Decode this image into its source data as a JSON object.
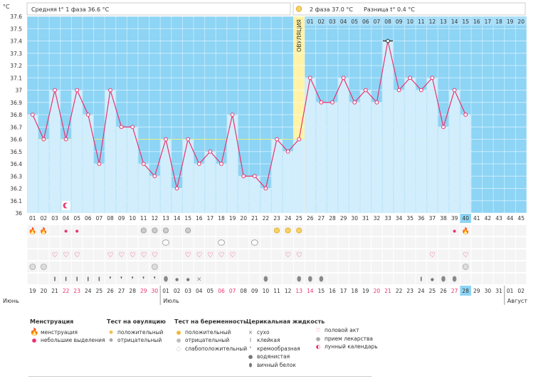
{
  "header": {
    "phase1": "Средняя t° 1 фаза 36.6 °C",
    "phase2": "2 фаза 37.0 °C",
    "diff": "Разница t° 0.4 °C",
    "phase2_icon": "sun-icon"
  },
  "chart_data": {
    "type": "line",
    "yunit": "°C",
    "ylim": [
      36,
      37.6
    ],
    "yticks": [
      "36",
      "36.1",
      "36.2",
      "36.3",
      "36.4",
      "36.5",
      "36.6",
      "36.7",
      "36.8",
      "36.9",
      "37",
      "37.1",
      "37.2",
      "37.3",
      "37.4",
      "37.5",
      "37.6"
    ],
    "cycle_days": [
      "01",
      "02",
      "03",
      "04",
      "05",
      "06",
      "07",
      "08",
      "09",
      "10",
      "11",
      "12",
      "13",
      "14",
      "15",
      "16",
      "17",
      "18",
      "19",
      "20",
      "21",
      "22",
      "23",
      "24",
      "25",
      "26",
      "27",
      "28",
      "29",
      "30",
      "31",
      "32",
      "33",
      "34",
      "35",
      "36",
      "37",
      "38",
      "39",
      "40",
      "41",
      "42",
      "43",
      "44",
      "45"
    ],
    "temps": [
      36.8,
      36.6,
      37.0,
      36.6,
      37.0,
      36.8,
      36.4,
      37.0,
      36.7,
      36.7,
      36.4,
      36.3,
      36.6,
      36.2,
      36.6,
      36.4,
      36.5,
      36.4,
      36.8,
      36.3,
      36.3,
      36.2,
      36.6,
      36.5,
      36.6,
      37.1,
      36.9,
      36.9,
      37.1,
      36.9,
      37.0,
      36.9,
      37.4,
      37.0,
      37.1,
      37.0,
      37.1,
      36.7,
      37.0,
      36.8
    ],
    "coverline": 36.6,
    "ovulation_label": "ОВУЛЯЦИЯ",
    "ovulation_day_index": 24,
    "current_day_index": 39,
    "phase2_days": [
      "01",
      "02",
      "03",
      "04",
      "05",
      "06",
      "07",
      "08",
      "09",
      "10",
      "11",
      "12",
      "13",
      "14",
      "15",
      "16",
      "17",
      "18",
      "19",
      "20"
    ],
    "dates": [
      "19",
      "20",
      "21",
      "22",
      "23",
      "24",
      "25",
      "26",
      "27",
      "28",
      "29",
      "30",
      "01",
      "02",
      "03",
      "04",
      "05",
      "06",
      "07",
      "08",
      "09",
      "10",
      "11",
      "12",
      "13",
      "14",
      "15",
      "16",
      "17",
      "18",
      "19",
      "20",
      "21",
      "22",
      "23",
      "24",
      "25",
      "26",
      "27",
      "28",
      "29",
      "30",
      "31",
      "01",
      "02"
    ],
    "red_date_indices": [
      3,
      4,
      10,
      11,
      17,
      18,
      24,
      25,
      31,
      32,
      38
    ],
    "months": [
      {
        "label": "Июнь",
        "start": 0
      },
      {
        "label": "Июль",
        "start": 12
      },
      {
        "label": "Август",
        "start": 43
      }
    ],
    "markers": {
      "lunar": [
        3
      ],
      "menstruation": [
        0,
        1
      ],
      "light_discharge": [
        3,
        4,
        38
      ],
      "menstruation_big": [
        39
      ],
      "ovulation_negative": [
        10,
        11,
        12,
        14
      ],
      "ovulation_positive": [
        22,
        23,
        24
      ],
      "pregnancy_faint": [
        12,
        17,
        20
      ],
      "intercourse": [
        2,
        3,
        4,
        7,
        8,
        9,
        10,
        11,
        14,
        15,
        16,
        17,
        18,
        23,
        24,
        36,
        39
      ],
      "medication": [
        0,
        1,
        11,
        39
      ],
      "fluid_sticky": [
        2,
        3,
        4,
        5,
        6,
        35
      ],
      "fluid_creamy": [
        7,
        8,
        9,
        10,
        11
      ],
      "fluid_watery": [
        13,
        14,
        36
      ],
      "fluid_dry": [
        15
      ],
      "fluid_eggwhite": [
        12,
        21,
        24,
        25,
        26,
        37,
        38
      ]
    }
  },
  "legend": {
    "groups": [
      {
        "title": "Менструация",
        "items": [
          {
            "icon": "drop-large-icon",
            "label": "менструация"
          },
          {
            "icon": "drop-small-icon",
            "label": "небольшие выделения"
          }
        ]
      },
      {
        "title": "Тест на овуляцию",
        "items": [
          {
            "icon": "ovulation-positive-icon",
            "label": "положительный"
          },
          {
            "icon": "ovulation-negative-icon",
            "label": "отрицательный"
          }
        ]
      },
      {
        "title": "Тест на беременность",
        "items": [
          {
            "icon": "pregnancy-positive-icon",
            "label": "положительный"
          },
          {
            "icon": "pregnancy-negative-icon",
            "label": "отрицательный"
          },
          {
            "icon": "pregnancy-faint-icon",
            "label": "слабоположительный"
          }
        ]
      },
      {
        "title": "Церикальная жидкость",
        "items": [
          {
            "icon": "dry-icon",
            "label": "сухо"
          },
          {
            "icon": "sticky-icon",
            "label": "клейкая"
          },
          {
            "icon": "creamy-icon",
            "label": "кремообразная"
          },
          {
            "icon": "watery-icon",
            "label": "водянистая"
          },
          {
            "icon": "eggwhite-icon",
            "label": "вичный белок"
          }
        ]
      },
      {
        "title": "",
        "items": [
          {
            "icon": "heart-icon",
            "label": "половой акт"
          },
          {
            "icon": "pill-icon",
            "label": "прием лекарства"
          },
          {
            "icon": "moon-icon",
            "label": "лунный календарь"
          }
        ]
      }
    ]
  }
}
